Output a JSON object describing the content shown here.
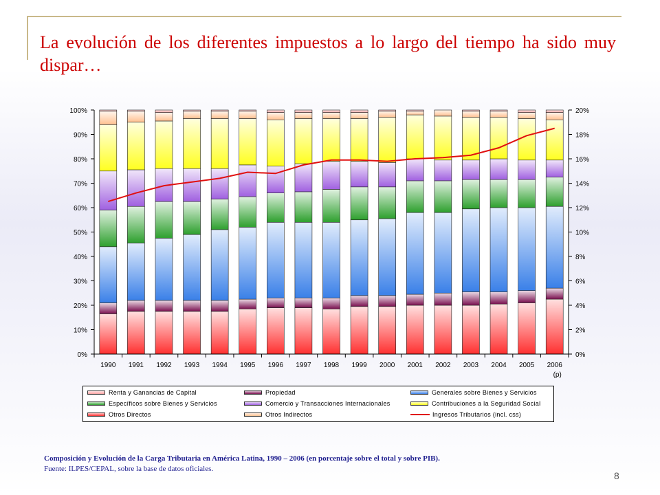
{
  "slide": {
    "title": "La evolución de los diferentes impuestos a lo largo del tiempo ha sido muy dispar…",
    "caption": "Composición y Evolución de la Carga Tributaria en América Latina, 1990 – 2006 (en porcentaje sobre el total y sobre PIB).",
    "source": "Fuente: ILPES/CEPAL, sobre la base de datos oficiales.",
    "page_number": "8"
  },
  "chart_data": {
    "type": "bar",
    "stacked": true,
    "categories": [
      "1990",
      "1991",
      "1992",
      "1993",
      "1994",
      "1995",
      "1996",
      "1997",
      "1998",
      "1999",
      "2000",
      "2001",
      "2002",
      "2003",
      "2004",
      "2005",
      "2006"
    ],
    "category_note": {
      "index": 16,
      "text": "(p)"
    },
    "y_left": {
      "ticks": [
        "0%",
        "10%",
        "20%",
        "30%",
        "40%",
        "50%",
        "60%",
        "70%",
        "80%",
        "90%",
        "100%"
      ],
      "ylim": [
        0,
        100
      ]
    },
    "y_right": {
      "ticks": [
        "0%",
        "2%",
        "4%",
        "6%",
        "8%",
        "10%",
        "12%",
        "14%",
        "16%",
        "18%",
        "20%"
      ],
      "ylim": [
        0,
        20
      ]
    },
    "series": [
      {
        "name": "Otros Directos",
        "color": "#ff3030",
        "values": [
          16.5,
          17.5,
          17.5,
          17.5,
          17.5,
          18.5,
          19,
          19,
          18.5,
          19.5,
          19.5,
          20,
          20,
          20,
          20.5,
          21,
          22.5
        ]
      },
      {
        "name": "Propiedad",
        "color": "#7a1050",
        "values": [
          4.5,
          4.5,
          4.5,
          4.5,
          4.5,
          4,
          4,
          4,
          4.5,
          4.5,
          4.5,
          4.5,
          5,
          5.5,
          5,
          5,
          4.5
        ]
      },
      {
        "name": "Generales sobre Bienes y Servicios",
        "color": "#3a80e8",
        "values": [
          23,
          23.5,
          25.5,
          27,
          29,
          29.5,
          31,
          31,
          31,
          31,
          31.5,
          33.5,
          33,
          34,
          34.5,
          34,
          33.5
        ]
      },
      {
        "name": "Específicos sobre Bienes y Servicios",
        "color": "#2ea02e",
        "values": [
          15,
          15,
          15,
          13.5,
          12.5,
          12.5,
          12,
          12.5,
          13.5,
          13.5,
          13,
          13,
          13,
          12,
          11.5,
          11.5,
          12
        ]
      },
      {
        "name": "Comercio y Transacciones Internacionales",
        "color": "#a060e0",
        "values": [
          16,
          15,
          13.5,
          13.5,
          12.5,
          13,
          11,
          11.5,
          11.5,
          10.5,
          10,
          9,
          8.5,
          8,
          8.5,
          8,
          7
        ]
      },
      {
        "name": "Contribuciones a la Seguridad Social",
        "color": "#ffff20",
        "values": [
          19,
          19.5,
          19.5,
          20.5,
          20.5,
          19,
          19,
          18.5,
          17.5,
          17.5,
          18.5,
          18,
          18,
          17.5,
          17,
          17,
          16.5
        ]
      },
      {
        "name": "Otros Indirectos",
        "color": "#ffc090",
        "values": [
          5.5,
          4.5,
          3.5,
          3,
          3,
          3,
          3,
          2.5,
          2.5,
          2.5,
          2.5,
          1.5,
          2.5,
          2.5,
          2.5,
          2.5,
          3
        ]
      },
      {
        "name": "Renta y Ganancias de Capital",
        "color": "#ffa0a0",
        "values": [
          0.5,
          0.5,
          1,
          0.5,
          0.5,
          0.5,
          1,
          1,
          1,
          1,
          0.5,
          0.5,
          0,
          0.5,
          0.5,
          1,
          1
        ]
      }
    ],
    "line": {
      "name": "Ingresos Tributarios (incl. css)",
      "color": "#e01010",
      "axis": "right",
      "values": [
        12.5,
        13.2,
        13.8,
        14.1,
        14.4,
        14.9,
        14.8,
        15.5,
        15.9,
        15.9,
        15.8,
        16,
        16.1,
        16.3,
        16.9,
        17.9,
        18.5
      ]
    },
    "legend": {
      "placement": "bottom",
      "rows": [
        [
          "Renta y Ganancias de Capital",
          "Propiedad",
          "Generales sobre Bienes y Servicios"
        ],
        [
          "Específicos sobre Bienes y Servicios",
          "Comercio y Transacciones Internacionales",
          "Contribuciones a la Seguridad Social"
        ],
        [
          "Otros Directos",
          "Otros Indirectos",
          "Ingresos Tributarios (incl. css)"
        ]
      ]
    }
  }
}
